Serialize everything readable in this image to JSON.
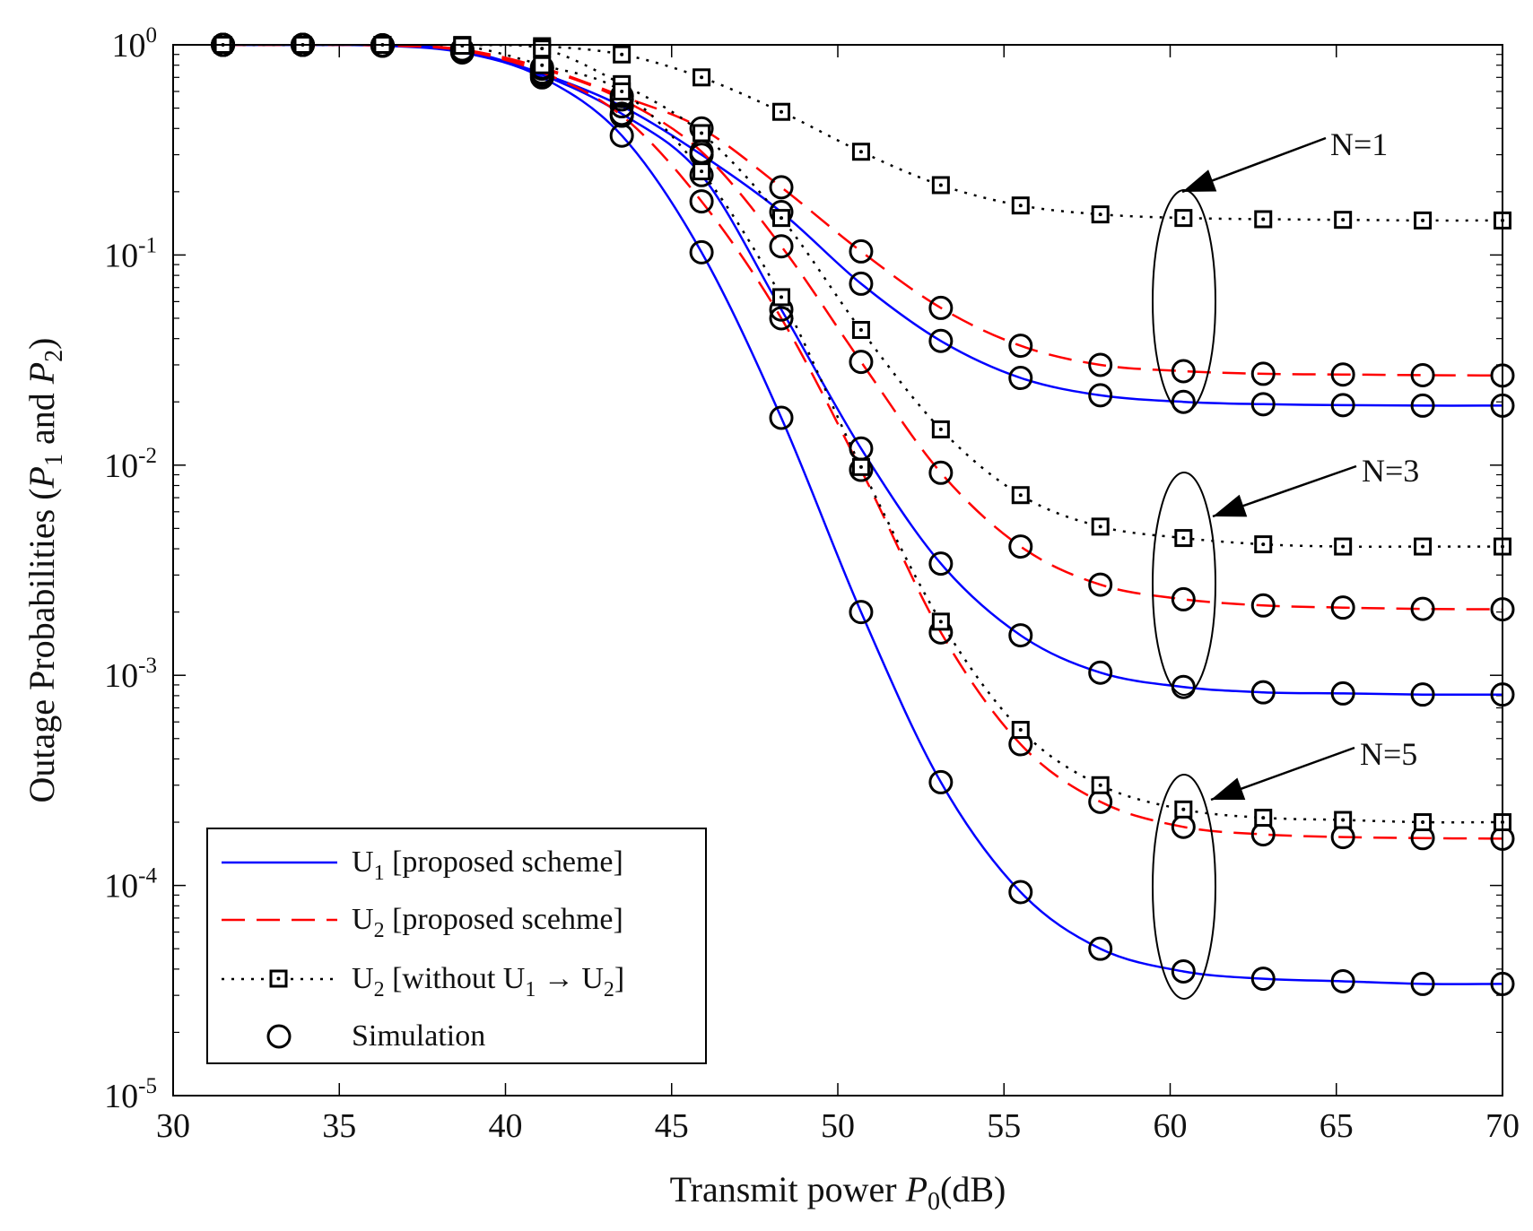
{
  "chart_data": {
    "type": "line",
    "xlabel": {
      "text": "Transmit power ",
      "symbol": "P",
      "sub": "0",
      "unit": "(dB)"
    },
    "ylabel": {
      "part1": "Outage Probabilities (",
      "p1": "P",
      "s1": "1",
      "and": " and ",
      "p2": "P",
      "s2": "2",
      "close": ")"
    },
    "xlim": [
      30,
      70
    ],
    "ylim_log10": [
      -5,
      0
    ],
    "x_ticks": [
      "30",
      "35",
      "40",
      "45",
      "50",
      "55",
      "60",
      "65",
      "70"
    ],
    "y_ticks": [
      {
        "base": "10",
        "exp": "0"
      },
      {
        "base": "10",
        "exp": "-1"
      },
      {
        "base": "10",
        "exp": "-2"
      },
      {
        "base": "10",
        "exp": "-3"
      },
      {
        "base": "10",
        "exp": "-4"
      },
      {
        "base": "10",
        "exp": "-5"
      }
    ],
    "x": [
      31.5,
      33.9,
      36.3,
      38.7,
      41.1,
      43.5,
      45.9,
      48.3,
      50.7,
      53.1,
      55.5,
      57.9,
      60.4,
      62.8,
      65.2,
      67.6,
      70.0
    ],
    "series": [
      {
        "name": "U1 N=1",
        "kind": "U1",
        "values": [
          1,
          1,
          0.995,
          0.94,
          0.73,
          0.51,
          0.3,
          0.16,
          0.073,
          0.039,
          0.026,
          0.0215,
          0.02,
          0.0195,
          0.0193,
          0.0192,
          0.0192
        ]
      },
      {
        "name": "U2 N=1",
        "kind": "U2",
        "values": [
          1,
          1,
          0.995,
          0.95,
          0.78,
          0.57,
          0.4,
          0.21,
          0.104,
          0.056,
          0.037,
          0.03,
          0.028,
          0.0272,
          0.027,
          0.0268,
          0.0267
        ]
      },
      {
        "name": "U2w N=1",
        "kind": "U2w",
        "values": [
          1,
          1,
          1,
          0.998,
          0.985,
          0.9,
          0.7,
          0.48,
          0.31,
          0.215,
          0.172,
          0.156,
          0.15,
          0.148,
          0.147,
          0.146,
          0.146
        ]
      },
      {
        "name": "U1 N=3",
        "kind": "U1",
        "values": [
          1,
          1,
          0.993,
          0.93,
          0.72,
          0.47,
          0.24,
          0.055,
          0.012,
          0.0034,
          0.00155,
          0.00103,
          0.00088,
          0.00083,
          0.00082,
          0.00081,
          0.00081
        ]
      },
      {
        "name": "U2 N=3",
        "kind": "U2",
        "values": [
          1,
          1,
          0.995,
          0.95,
          0.77,
          0.55,
          0.31,
          0.11,
          0.031,
          0.0092,
          0.0041,
          0.0027,
          0.0023,
          0.00215,
          0.0021,
          0.00207,
          0.00206
        ]
      },
      {
        "name": "U2w N=3",
        "kind": "U2w",
        "values": [
          1,
          1,
          1,
          0.997,
          0.96,
          0.65,
          0.38,
          0.15,
          0.044,
          0.0148,
          0.0072,
          0.0051,
          0.0045,
          0.0042,
          0.0041,
          0.0041,
          0.0041
        ]
      },
      {
        "name": "U1 N=5",
        "kind": "U1",
        "values": [
          1,
          1,
          0.99,
          0.92,
          0.7,
          0.37,
          0.103,
          0.0168,
          0.002,
          0.00031,
          9.3e-05,
          5e-05,
          3.9e-05,
          3.6e-05,
          3.5e-05,
          3.4e-05,
          3.4e-05
        ]
      },
      {
        "name": "U2 N=5",
        "kind": "U2",
        "values": [
          1,
          1,
          0.993,
          0.94,
          0.74,
          0.46,
          0.18,
          0.05,
          0.0095,
          0.0016,
          0.00047,
          0.00025,
          0.00019,
          0.000175,
          0.00017,
          0.000168,
          0.000167
        ]
      },
      {
        "name": "U2w N=5",
        "kind": "U2w",
        "values": [
          1,
          1,
          1,
          0.99,
          0.8,
          0.6,
          0.25,
          0.063,
          0.0098,
          0.0018,
          0.00055,
          0.0003,
          0.00023,
          0.00021,
          0.000205,
          0.0002,
          0.0002
        ]
      }
    ],
    "styles": {
      "U1": {
        "color": "#0000ff",
        "dash": ""
      },
      "U2": {
        "color": "#ff0000",
        "dash": "26 13"
      },
      "U2w": {
        "color": "#000000",
        "dash": "3 8"
      }
    },
    "legend": {
      "position": "bottom-left",
      "items": [
        {
          "main": "U",
          "sub": "1",
          "rest": " [proposed scheme]"
        },
        {
          "main": "U",
          "sub": "2",
          "rest": " [proposed scehme]"
        },
        {
          "main": "U",
          "sub": "2",
          "rest": " [without U",
          "sub2": "1",
          "arrow": " → U",
          "sub3": "2",
          "end": "]"
        },
        {
          "main": "Simulation"
        }
      ]
    },
    "annotations": [
      {
        "label": "N=1",
        "ellipse_center": [
          60.4,
          0.0447
        ]
      },
      {
        "label": "N=3",
        "ellipse_center": [
          60.4,
          0.00197
        ]
      },
      {
        "label": "N=5",
        "ellipse_center": [
          60.4,
          9.25e-05
        ]
      }
    ]
  }
}
